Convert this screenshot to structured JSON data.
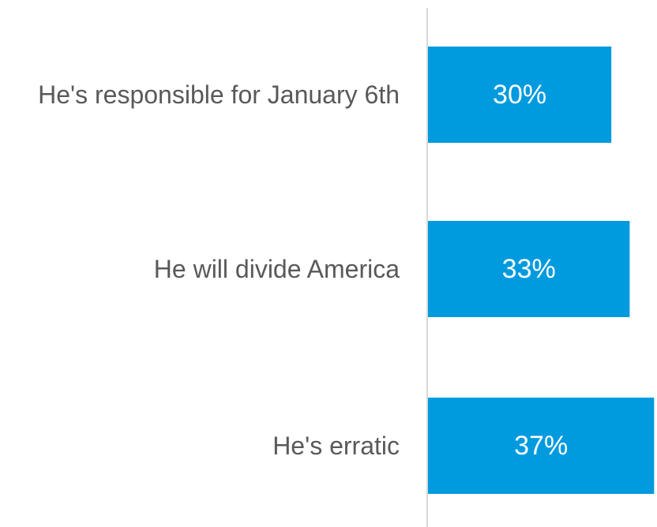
{
  "chart_data": {
    "type": "bar",
    "orientation": "horizontal",
    "categories": [
      "He's responsible for January 6th",
      "He will divide America",
      "He's erratic"
    ],
    "values": [
      30,
      33,
      37
    ],
    "data_labels": [
      "30%",
      "33%",
      "37%"
    ],
    "title": "",
    "xlabel": "",
    "ylabel": "",
    "xlim": [
      0,
      37.6
    ],
    "grid": false,
    "legend": "none",
    "bar_color": "#009ADE",
    "axis_color": "#D9D9D9",
    "label_color": "#595959"
  }
}
